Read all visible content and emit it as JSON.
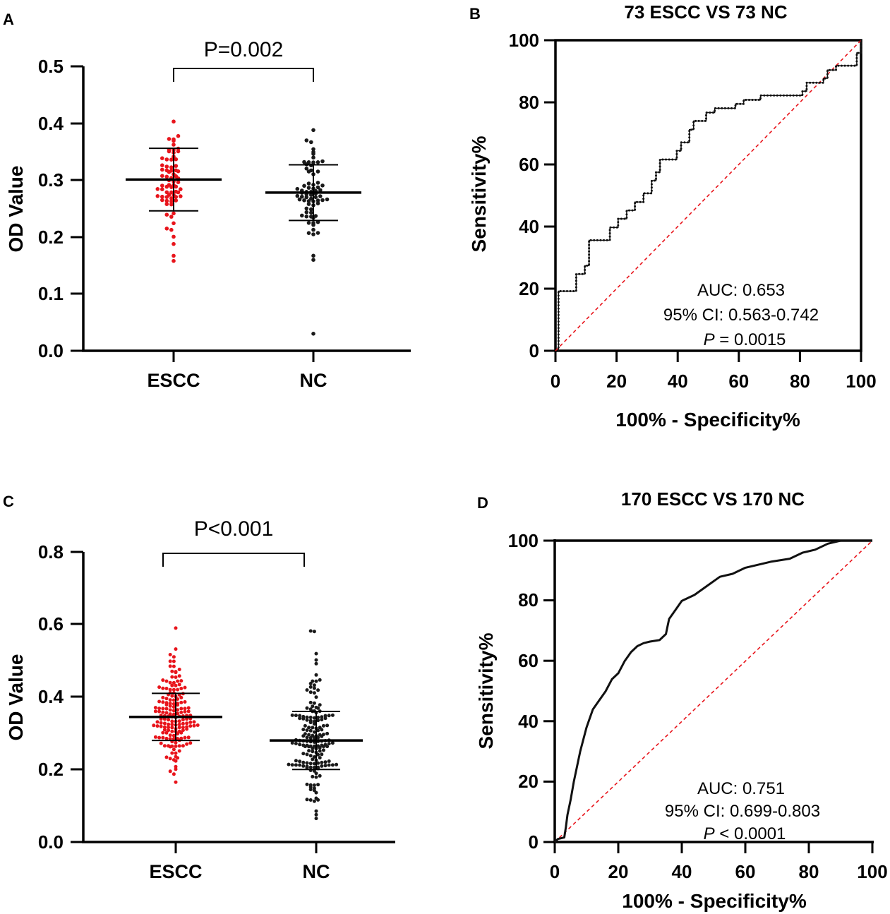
{
  "panels": [
    {
      "id": "A",
      "type": "scatter-dot",
      "label": "A",
      "ylabel": "OD Value",
      "ylim": [
        0,
        0.5
      ],
      "yticks": [
        "0.0",
        "0.1",
        "0.2",
        "0.3",
        "0.4",
        "0.5"
      ],
      "comparison": "P=0.002",
      "groups": [
        {
          "name": "ESCC",
          "color": "#e8141b",
          "n": 73,
          "mean": 0.301,
          "sd": 0.055,
          "min": 0.158,
          "max": 0.403
        },
        {
          "name": "NC",
          "color": "#1a1a1a",
          "n": 73,
          "mean": 0.278,
          "sd": 0.049,
          "min": 0.03,
          "max": 0.388
        }
      ]
    },
    {
      "id": "B",
      "type": "roc",
      "label": "B",
      "title": "73 ESCC VS 73 NC",
      "xlabel": "100% - Specificity%",
      "ylabel": "Sensitivity%",
      "xticks": [
        "0",
        "20",
        "40",
        "60",
        "80",
        "100"
      ],
      "yticks": [
        "0",
        "20",
        "40",
        "60",
        "80",
        "100"
      ],
      "annotation": {
        "auc": "AUC: 0.653",
        "ci": "95% CI: 0.563-0.742",
        "p_italic": "P",
        "p_rest": " = 0.0015"
      },
      "curve": [
        [
          1,
          0
        ],
        [
          1,
          5.5
        ],
        [
          1,
          19.2
        ],
        [
          6.8,
          19.2
        ],
        [
          6.8,
          24.7
        ],
        [
          9.6,
          24.7
        ],
        [
          9.6,
          27.4
        ],
        [
          11,
          27.4
        ],
        [
          11,
          35.6
        ],
        [
          17.8,
          35.6
        ],
        [
          17.8,
          39.7
        ],
        [
          20.5,
          39.7
        ],
        [
          20.5,
          42.5
        ],
        [
          23.3,
          42.5
        ],
        [
          23.3,
          45.2
        ],
        [
          26,
          45.2
        ],
        [
          26,
          47.9
        ],
        [
          28.8,
          47.9
        ],
        [
          28.8,
          50.7
        ],
        [
          31.5,
          50.7
        ],
        [
          31.5,
          54.8
        ],
        [
          32.9,
          54.8
        ],
        [
          32.9,
          57.5
        ],
        [
          34.2,
          57.5
        ],
        [
          34.2,
          61.6
        ],
        [
          39.7,
          61.6
        ],
        [
          39.7,
          64.4
        ],
        [
          41.1,
          64.4
        ],
        [
          41.1,
          67.1
        ],
        [
          43.8,
          67.1
        ],
        [
          43.8,
          71.2
        ],
        [
          45.2,
          71.2
        ],
        [
          45.2,
          74
        ],
        [
          49.3,
          74
        ],
        [
          49.3,
          76.7
        ],
        [
          52.1,
          76.7
        ],
        [
          52.1,
          78.1
        ],
        [
          58.9,
          78.1
        ],
        [
          58.9,
          79.5
        ],
        [
          61.6,
          79.5
        ],
        [
          61.6,
          80.8
        ],
        [
          67.1,
          80.8
        ],
        [
          67.1,
          82.2
        ],
        [
          80.8,
          82.2
        ],
        [
          80.8,
          83.6
        ],
        [
          82.2,
          83.6
        ],
        [
          82.2,
          86.3
        ],
        [
          87.7,
          86.3
        ],
        [
          87.7,
          87.7
        ],
        [
          89,
          87.7
        ],
        [
          89,
          90.4
        ],
        [
          91.8,
          90.4
        ],
        [
          91.8,
          91.8
        ],
        [
          98.6,
          91.8
        ],
        [
          98.6,
          95.9
        ],
        [
          100,
          95.9
        ],
        [
          100,
          100
        ]
      ]
    },
    {
      "id": "C",
      "type": "scatter-dot",
      "label": "C",
      "ylabel": "OD Value",
      "ylim": [
        0,
        0.8
      ],
      "yticks": [
        "0.0",
        "0.2",
        "0.4",
        "0.6",
        "0.8"
      ],
      "comparison": "P<0.001",
      "groups": [
        {
          "name": "ESCC",
          "color": "#e8141b",
          "n": 170,
          "mean": 0.345,
          "sd": 0.065,
          "min": 0.165,
          "max": 0.59
        },
        {
          "name": "NC",
          "color": "#1a1a1a",
          "n": 170,
          "mean": 0.28,
          "sd": 0.08,
          "min": 0.065,
          "max": 0.582
        }
      ]
    },
    {
      "id": "D",
      "type": "roc",
      "label": "D",
      "title": "170 ESCC VS 170 NC",
      "xlabel": "100% - Specificity%",
      "ylabel": "Sensitivity%",
      "xticks": [
        "0",
        "20",
        "40",
        "60",
        "80",
        "100"
      ],
      "yticks": [
        "0",
        "20",
        "40",
        "60",
        "80",
        "100"
      ],
      "annotation": {
        "auc": "AUC: 0.751",
        "ci": "95% CI: 0.699-0.803",
        "p_italic": "P",
        "p_rest": " < 0.0001"
      },
      "curve": [
        [
          0,
          0
        ],
        [
          1,
          1
        ],
        [
          3,
          1.5
        ],
        [
          3.5,
          5
        ],
        [
          4,
          9
        ],
        [
          5,
          14
        ],
        [
          6,
          20
        ],
        [
          7,
          25
        ],
        [
          8,
          30
        ],
        [
          9,
          34
        ],
        [
          10,
          38
        ],
        [
          11,
          41
        ],
        [
          12,
          44
        ],
        [
          14,
          47
        ],
        [
          16,
          50
        ],
        [
          18,
          54
        ],
        [
          20,
          56
        ],
        [
          22,
          60
        ],
        [
          24,
          63
        ],
        [
          26,
          65
        ],
        [
          28,
          66
        ],
        [
          30,
          66.5
        ],
        [
          33,
          67
        ],
        [
          35,
          69
        ],
        [
          36,
          74
        ],
        [
          38,
          77
        ],
        [
          40,
          80
        ],
        [
          44,
          82
        ],
        [
          48,
          85
        ],
        [
          52,
          88
        ],
        [
          56,
          89
        ],
        [
          60,
          91
        ],
        [
          64,
          92
        ],
        [
          68,
          93
        ],
        [
          74,
          94
        ],
        [
          78,
          96
        ],
        [
          82,
          97
        ],
        [
          86,
          99
        ],
        [
          90,
          100
        ],
        [
          100,
          100
        ]
      ]
    }
  ]
}
